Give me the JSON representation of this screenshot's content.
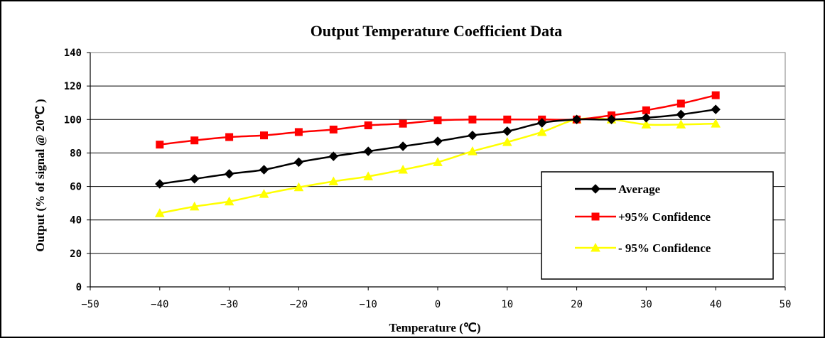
{
  "chart_data": {
    "type": "line",
    "title": "Output Temperature Coefficient Data",
    "xlabel": "Temperature (℃)",
    "ylabel": "Output (% of signal @ 20℃ )",
    "xlim": [
      -50,
      50
    ],
    "ylim": [
      0,
      140
    ],
    "xticks": [
      "-50",
      "-40",
      "-30",
      "-20",
      "-10",
      "0",
      "10",
      "20",
      "30",
      "40",
      "50"
    ],
    "yticks": [
      "0",
      "20",
      "40",
      "60",
      "80",
      "100",
      "120",
      "140"
    ],
    "grid": "horizontal",
    "legend_position": "bottom-right",
    "x": [
      -40,
      -35,
      -30,
      -25,
      -20,
      -15,
      -10,
      -5,
      0,
      5,
      10,
      15,
      20,
      25,
      30,
      35,
      40
    ],
    "series": [
      {
        "name": "Average",
        "color": "#000000",
        "marker": "diamond",
        "values": [
          61.5,
          64.5,
          67.5,
          70,
          74.5,
          78,
          81,
          84,
          87,
          90.5,
          93,
          98,
          100,
          100,
          101,
          103,
          106
        ]
      },
      {
        "name": "+95% Confidence",
        "color": "#ff0000",
        "marker": "square",
        "values": [
          85,
          87.5,
          89.5,
          90.5,
          92.5,
          94,
          96.5,
          97.5,
          99.5,
          100,
          100,
          100,
          100,
          102.5,
          105.5,
          109.5,
          114.5
        ]
      },
      {
        "name": "- 95% Confidence",
        "color": "#ffff00",
        "marker": "triangle",
        "values": [
          44,
          48,
          51,
          55.5,
          59.5,
          63,
          66,
          70,
          74.5,
          81,
          86.5,
          92.5,
          100,
          100,
          97,
          97,
          97.5
        ]
      }
    ]
  }
}
